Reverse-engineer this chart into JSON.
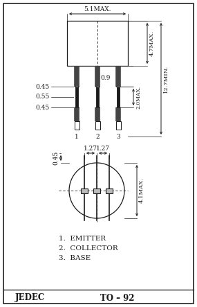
{
  "border_color": "#000000",
  "bg_color": "#ffffff",
  "line_color": "#1a1a1a",
  "footer_text": "JEDEC",
  "footer_text2": "TO – 92",
  "legend": [
    "1.  EMITTER",
    "2.  COLLECTOR",
    "3.  BASE"
  ],
  "dims": {
    "top_width_label": "5.1MAX.",
    "right_height_label1": "4.7MAX.",
    "right_height_label2": "12.7MIN.",
    "right_height_label3": "2.0MAX.",
    "left_labels": [
      "0.45",
      "0.55",
      "0.45"
    ],
    "inner_label": "0.9",
    "bottom_circle_labels": [
      "1.27",
      "1.27"
    ],
    "bottom_left_label": "0.45",
    "bottom_right_label": "4.1MAX."
  }
}
